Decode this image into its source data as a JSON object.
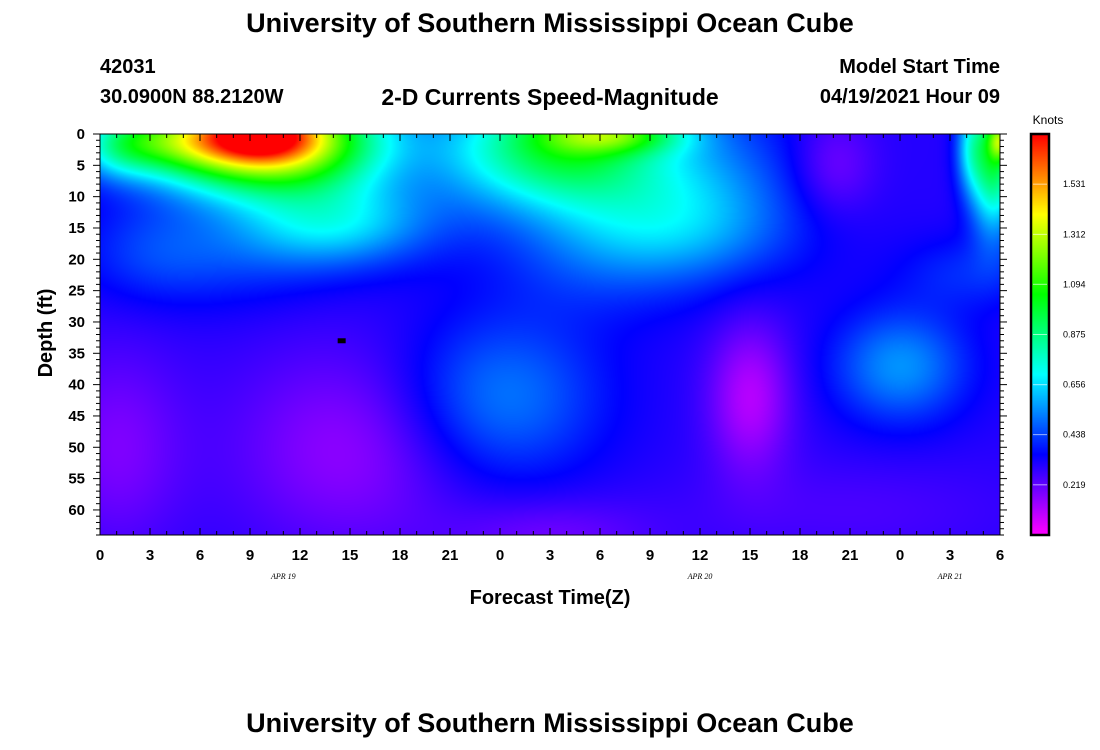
{
  "header": {
    "title": "University of Southern Mississippi Ocean Cube",
    "station_id": "42031",
    "station_coords": "30.0900N  88.2120W",
    "plot_title": "2-D Currents Speed-Magnitude",
    "model_start_label": "Model Start Time",
    "model_start_time": "04/19/2021 Hour 09"
  },
  "footer": {
    "title": "University of Southern Mississippi Ocean Cube"
  },
  "chart_data": {
    "type": "heatmap",
    "title": "2-D Currents Speed-Magnitude",
    "xlabel": "Forecast Time(Z)",
    "ylabel": "Depth (ft)",
    "x_tick_labels": [
      "0",
      "3",
      "6",
      "9",
      "12",
      "15",
      "18",
      "21",
      "0",
      "3",
      "6",
      "9",
      "12",
      "15",
      "18",
      "21",
      "0",
      "3",
      "6"
    ],
    "x_range_hours": [
      0,
      54
    ],
    "date_labels": [
      {
        "label": "APR 19",
        "hour": 11
      },
      {
        "label": "APR 20",
        "hour": 36
      },
      {
        "label": "APR 21",
        "hour": 51
      }
    ],
    "y_ticks": [
      0,
      5,
      10,
      15,
      20,
      25,
      30,
      35,
      40,
      45,
      50,
      55,
      60
    ],
    "y_range": [
      0,
      64
    ],
    "y_inverted": true,
    "colorbar": {
      "label": "Knots",
      "ticks": [
        "1.531",
        "1.312",
        "1.094",
        "0.875",
        "0.656",
        "0.438",
        "0.219"
      ],
      "tick_values": [
        1.531,
        1.312,
        1.094,
        0.875,
        0.656,
        0.438,
        0.219
      ],
      "range": [
        0,
        1.75
      ],
      "colors": [
        "#ff00ff",
        "#8000ff",
        "#0000ff",
        "#0080ff",
        "#00ffff",
        "#00ff80",
        "#00ff00",
        "#80ff00",
        "#ffff00",
        "#ff8000",
        "#ff0000"
      ]
    },
    "field_features": [
      {
        "hour": 10,
        "depth": 1,
        "hw": 6.5,
        "hd": 8,
        "value": 1.25
      },
      {
        "hour": 9.5,
        "depth": 0,
        "hw": 3.2,
        "hd": 4,
        "value": 0.45
      },
      {
        "hour": 4,
        "depth": 1,
        "hw": 4,
        "hd": 5,
        "value": 0.35
      },
      {
        "hour": 1,
        "depth": 2,
        "hw": 2.5,
        "hd": 5,
        "value": 0.25
      },
      {
        "hour": 14,
        "depth": 14,
        "hw": 6,
        "hd": 7,
        "value": 0.35
      },
      {
        "hour": 7,
        "depth": 20,
        "hw": 7,
        "hd": 8,
        "value": 0.1
      },
      {
        "hour": 28,
        "depth": 1,
        "hw": 5,
        "hd": 10,
        "value": 0.55
      },
      {
        "hour": 31,
        "depth": 0,
        "hw": 4,
        "hd": 3,
        "value": 0.4
      },
      {
        "hour": 23,
        "depth": 3,
        "hw": 4.5,
        "hd": 9,
        "value": 0.2
      },
      {
        "hour": 34,
        "depth": 8,
        "hw": 7,
        "hd": 13,
        "value": 0.3
      },
      {
        "hour": 35,
        "depth": 16,
        "hw": 7,
        "hd": 8,
        "value": 0.12
      },
      {
        "hour": 53.6,
        "depth": 4,
        "hw": 1.4,
        "hd": 11,
        "value": 0.65
      },
      {
        "hour": 52.2,
        "depth": 2,
        "hw": 0.9,
        "hd": 7,
        "value": 0.25
      },
      {
        "hour": 54,
        "depth": 1,
        "hw": 0.7,
        "hd": 3,
        "value": 0.45
      },
      {
        "hour": 24,
        "depth": 42,
        "hw": 6,
        "hd": 13,
        "value": 0.22
      },
      {
        "hour": 48,
        "depth": 37,
        "hw": 4,
        "hd": 9,
        "value": 0.25
      },
      {
        "hour": 29,
        "depth": 20,
        "hw": 6,
        "hd": 10,
        "value": 0.08
      },
      {
        "hour": 3,
        "depth": 18,
        "hw": 4,
        "hd": 8,
        "value": 0.08
      },
      {
        "hour": 15,
        "depth": 50,
        "hw": 7,
        "hd": 16,
        "value": -0.15
      },
      {
        "hour": 1,
        "depth": 50,
        "hw": 4,
        "hd": 16,
        "value": -0.12
      },
      {
        "hour": 39,
        "depth": 42,
        "hw": 2.5,
        "hd": 12,
        "value": -0.2
      },
      {
        "hour": 27,
        "depth": 64,
        "hw": 6,
        "hd": 6,
        "value": -0.1
      },
      {
        "hour": 45,
        "depth": 60,
        "hw": 10,
        "hd": 8,
        "value": -0.05
      },
      {
        "hour": 44,
        "depth": 5,
        "hw": 2.5,
        "hd": 8,
        "value": -0.12
      },
      {
        "hour": 52,
        "depth": 22,
        "hw": 4,
        "hd": 6,
        "value": 0.1
      }
    ],
    "field_base_value": 0.3,
    "marker": {
      "hour": 14.5,
      "depth": 33
    },
    "grid": false,
    "legend": "colorbar-right"
  }
}
